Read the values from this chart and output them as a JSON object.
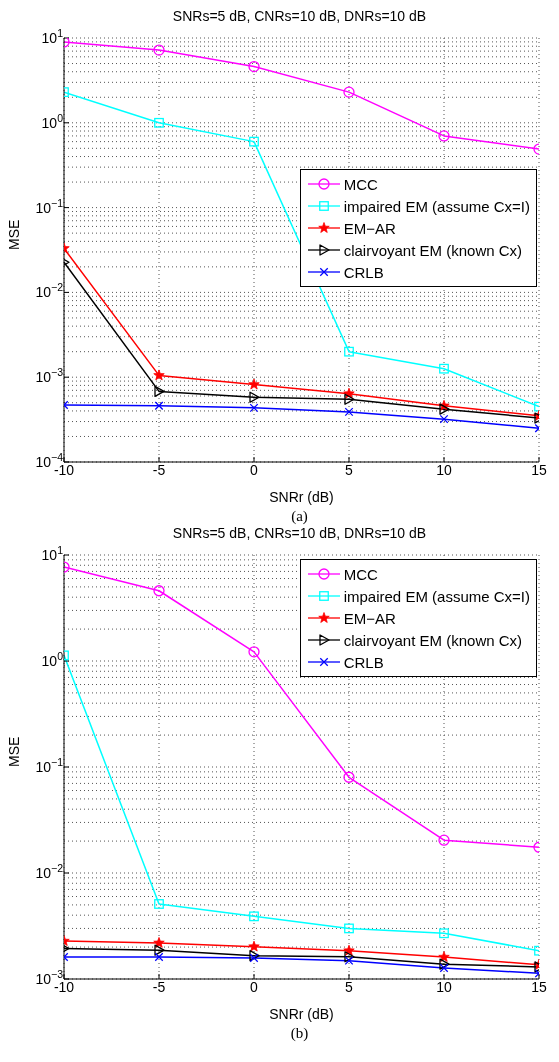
{
  "chart_data": [
    {
      "type": "line",
      "title": "SNRs=5 dB, CNRs=10 dB, DNRs=10 dB",
      "xlabel": "SNRr (dB)",
      "ylabel": "MSE",
      "annotations": [
        "(a)"
      ],
      "x": [
        -10,
        -5,
        0,
        5,
        10,
        15
      ],
      "xlim": [
        -10,
        15
      ],
      "xticks": [
        -10,
        -5,
        0,
        5,
        10,
        15
      ],
      "log": "y",
      "ylim": [
        0.0001,
        10
      ],
      "yticks": [
        {
          "value": 0.0001,
          "label": "10$^{−4}$"
        },
        {
          "value": 0.001,
          "label": "10$^{−3}$"
        },
        {
          "value": 0.01,
          "label": "10$^{−2}$"
        },
        {
          "value": 0.1,
          "label": "10$^{−1}$"
        },
        {
          "value": 1,
          "label": "10$^{0}$"
        },
        {
          "value": 10,
          "label": "10$^{1}$"
        }
      ],
      "grid": true,
      "legend": "right",
      "line_style": "solid",
      "series": [
        {
          "name": "MCC",
          "color": "#ff00ff",
          "marker": "circle",
          "values": [
            9.0,
            7.2,
            4.6,
            2.3,
            0.7,
            0.49
          ]
        },
        {
          "name": "impaired EM (assume Cx=I)",
          "color": "#00ffff",
          "marker": "square",
          "values": [
            2.3,
            1.0,
            0.6,
            0.002,
            0.00126,
            0.00045
          ]
        },
        {
          "name": "EM−AR",
          "color": "#ff0000",
          "marker": "star",
          "values": [
            0.033,
            0.00105,
            0.00082,
            0.00064,
            0.00046,
            0.00035
          ]
        },
        {
          "name": "clairvoyant EM (known Cx)",
          "color": "#000000",
          "marker": "triangle",
          "values": [
            0.0227,
            0.00068,
            0.00058,
            0.00055,
            0.00042,
            0.00033
          ]
        },
        {
          "name": "CRLB",
          "color": "#0000ff",
          "marker": "cross",
          "values": [
            0.00047,
            0.00046,
            0.000435,
            0.00039,
            0.00032,
            0.00025
          ]
        }
      ]
    },
    {
      "type": "line",
      "title": "SNRs=5 dB, CNRs=10 dB, DNRs=10 dB",
      "xlabel": "SNRr (dB)",
      "ylabel": "MSE",
      "annotations": [
        "(b)"
      ],
      "x": [
        -10,
        -5,
        0,
        5,
        10,
        15
      ],
      "xlim": [
        -10,
        15
      ],
      "xticks": [
        -10,
        -5,
        0,
        5,
        10,
        15
      ],
      "log": "y",
      "ylim": [
        0.001,
        10
      ],
      "yticks": [
        {
          "value": 0.001,
          "label": "10$^{−3}$"
        },
        {
          "value": 0.01,
          "label": "10$^{−2}$"
        },
        {
          "value": 0.1,
          "label": "10$^{−1}$"
        },
        {
          "value": 1,
          "label": "10$^{0}$"
        },
        {
          "value": 10,
          "label": "10$^{1}$"
        }
      ],
      "grid": true,
      "legend": "top right",
      "line_style": "solid",
      "series": [
        {
          "name": "MCC",
          "color": "#ff00ff",
          "marker": "circle",
          "values": [
            7.7,
            4.6,
            1.22,
            0.08,
            0.0204,
            0.0175
          ]
        },
        {
          "name": "impaired EM (assume Cx=I)",
          "color": "#00ffff",
          "marker": "square",
          "values": [
            1.13,
            0.0051,
            0.0039,
            0.003,
            0.0027,
            0.00185
          ]
        },
        {
          "name": "EM−AR",
          "color": "#ff0000",
          "marker": "star",
          "values": [
            0.00228,
            0.00219,
            0.00202,
            0.00185,
            0.00161,
            0.00136
          ]
        },
        {
          "name": "clairvoyant EM (known Cx)",
          "color": "#000000",
          "marker": "triangle",
          "values": [
            0.00194,
            0.00187,
            0.00166,
            0.00162,
            0.00138,
            0.0013
          ]
        },
        {
          "name": "CRLB",
          "color": "#0000ff",
          "marker": "cross",
          "values": [
            0.00161,
            0.00161,
            0.00158,
            0.00149,
            0.00127,
            0.00113
          ]
        }
      ]
    }
  ]
}
